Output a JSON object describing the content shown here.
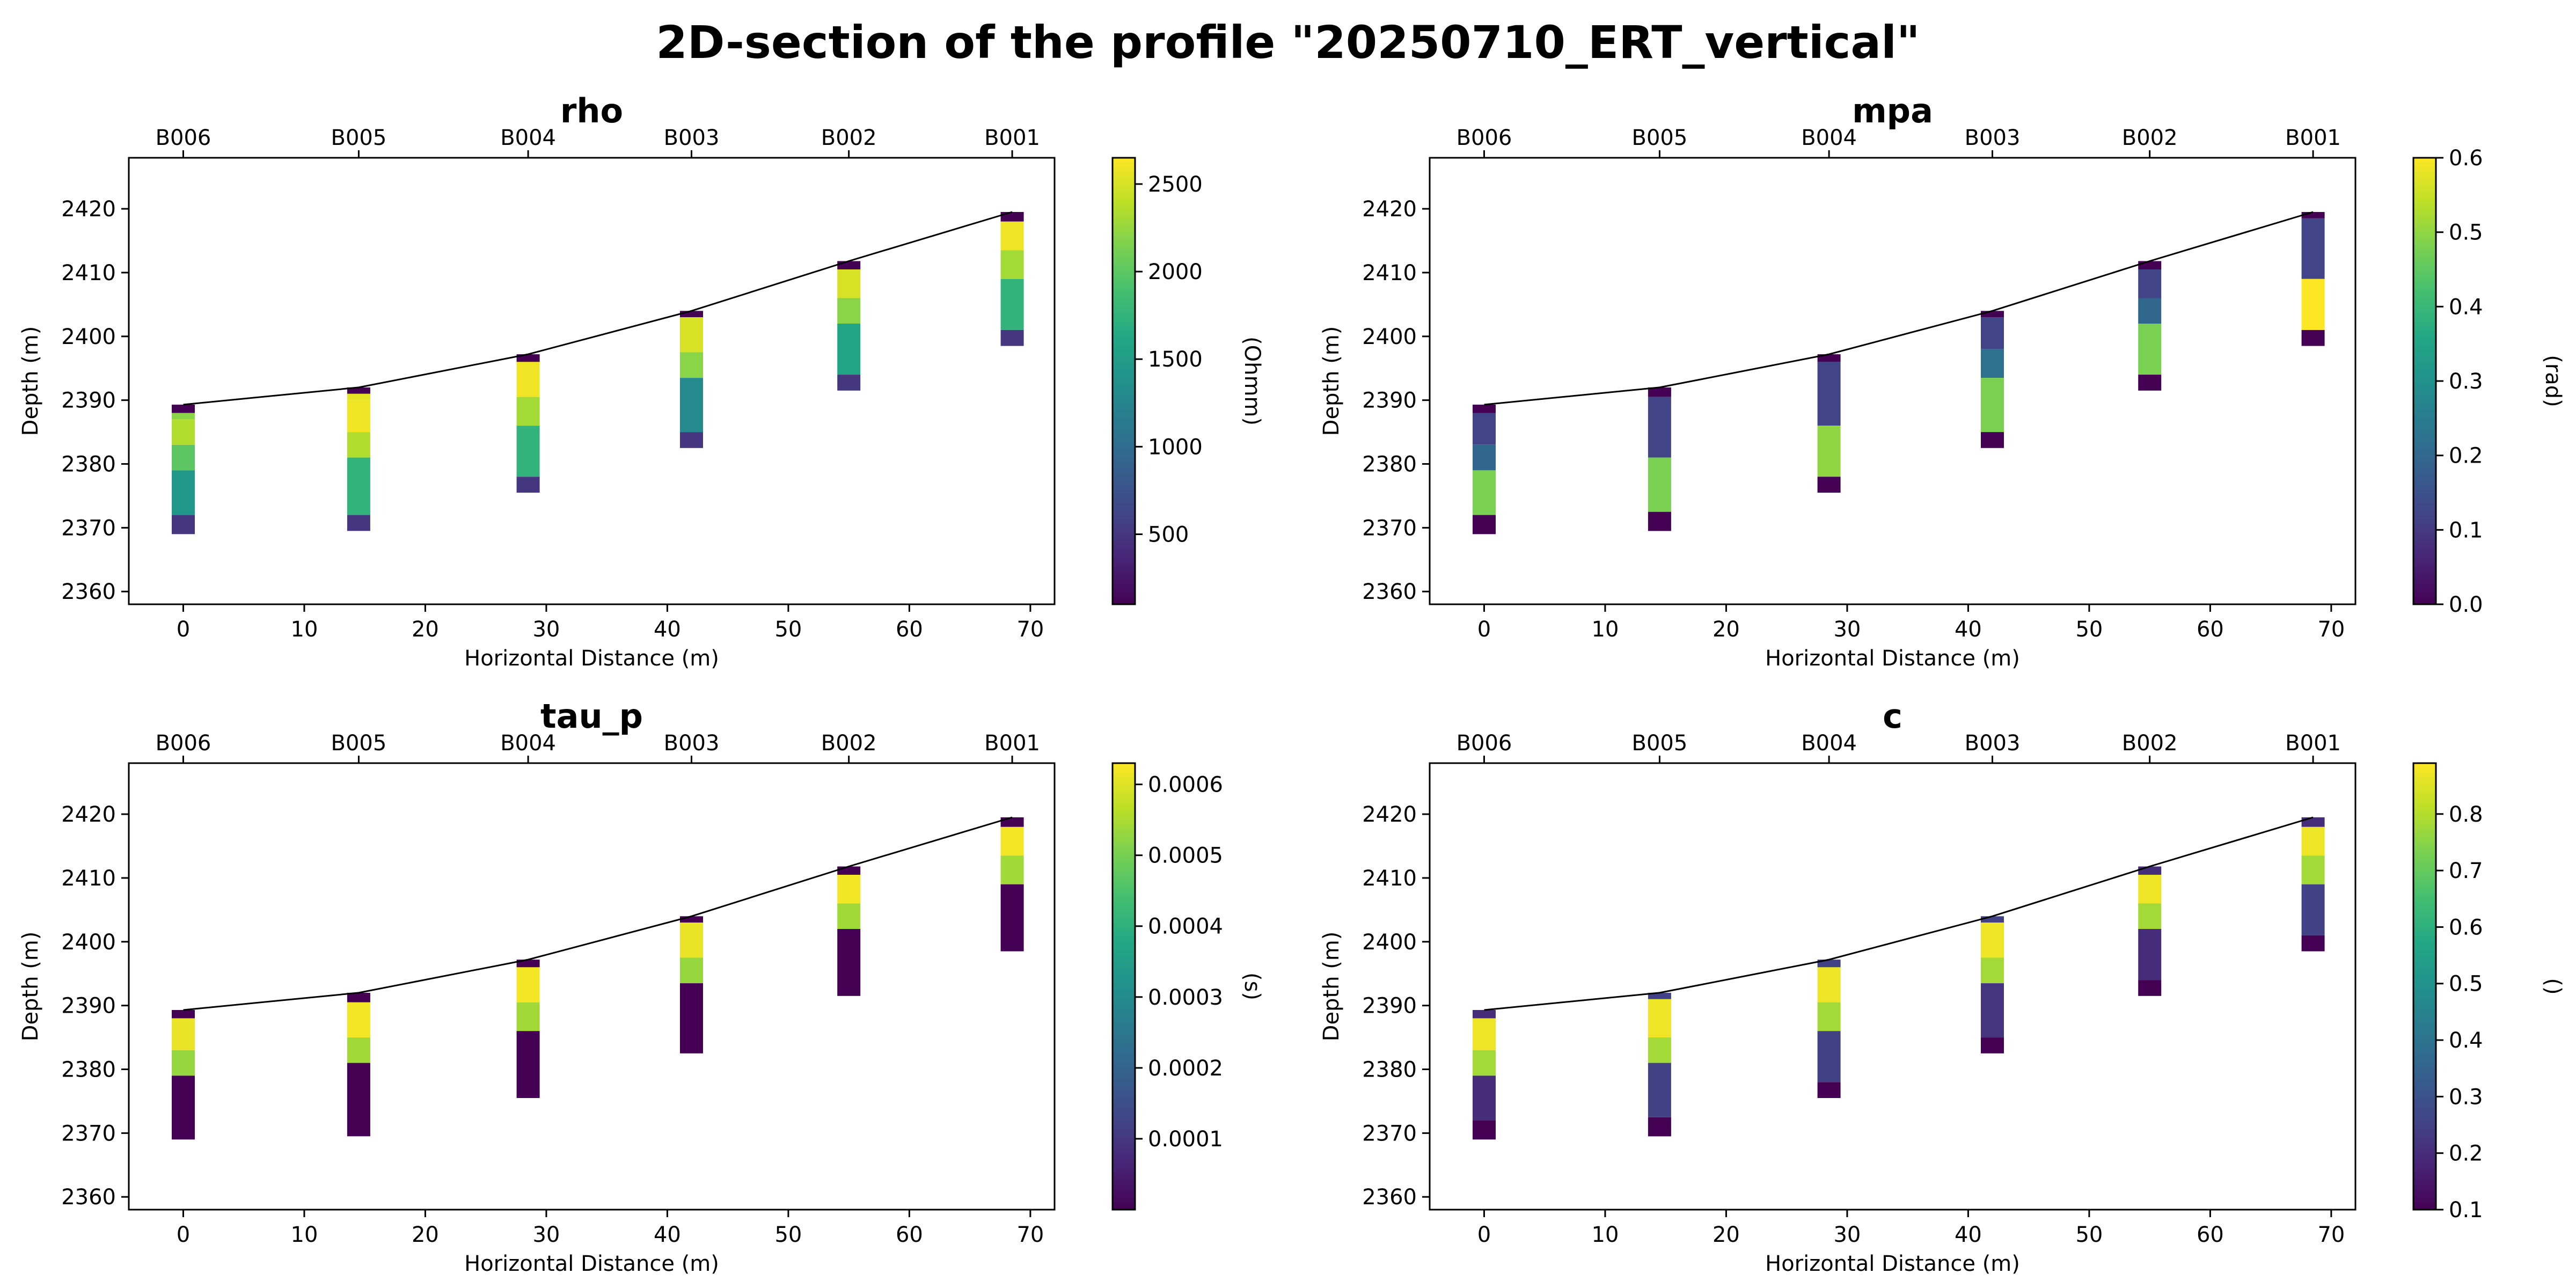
{
  "figure": {
    "title": "2D-section of the profile \"20250710_ERT_vertical\""
  },
  "chart_data": [
    {
      "type": "heatmap",
      "title": "rho",
      "xlabel": "Horizontal Distance (m)",
      "ylabel": "Depth (m)",
      "xlim": [
        -4.5,
        72
      ],
      "ylim": [
        2358,
        2428
      ],
      "xticks": [
        0,
        10,
        20,
        30,
        40,
        50,
        60,
        70
      ],
      "yticks": [
        2360,
        2370,
        2380,
        2390,
        2400,
        2410,
        2420
      ],
      "boreholes": [
        "B006",
        "B005",
        "B004",
        "B003",
        "B002",
        "B001"
      ],
      "borehole_x": [
        0,
        14.5,
        28.5,
        42,
        55,
        68.5
      ],
      "surface_elevation": [
        2389.3,
        2392.0,
        2397.2,
        2404.0,
        2411.8,
        2419.5
      ],
      "colorbar": {
        "label": "(Ohmm)",
        "ticks": [
          500,
          1000,
          1500,
          2000,
          2500
        ],
        "vmin": 100,
        "vmax": 2650
      },
      "columns": [
        [
          [
            2389.3,
            2388,
            100
          ],
          [
            2388,
            2387,
            2200
          ],
          [
            2387,
            2383,
            2350
          ],
          [
            2383,
            2379,
            2000
          ],
          [
            2379,
            2372,
            1450
          ],
          [
            2372,
            2369,
            500
          ]
        ],
        [
          [
            2392.0,
            2391,
            100
          ],
          [
            2391,
            2390,
            2550
          ],
          [
            2390,
            2385,
            2600
          ],
          [
            2385,
            2381,
            2350
          ],
          [
            2381,
            2372,
            1750
          ],
          [
            2372,
            2369.5,
            500
          ]
        ],
        [
          [
            2397.2,
            2396,
            100
          ],
          [
            2396,
            2390.5,
            2600
          ],
          [
            2390.5,
            2386,
            2300
          ],
          [
            2386,
            2378,
            1750
          ],
          [
            2378,
            2375.5,
            500
          ]
        ],
        [
          [
            2404.0,
            2403,
            100
          ],
          [
            2403,
            2397.5,
            2500
          ],
          [
            2397.5,
            2393.5,
            2200
          ],
          [
            2393.5,
            2385,
            1300
          ],
          [
            2385,
            2382.5,
            500
          ]
        ],
        [
          [
            2411.8,
            2410.5,
            100
          ],
          [
            2410.5,
            2406,
            2500
          ],
          [
            2406,
            2402,
            2200
          ],
          [
            2402,
            2394,
            1600
          ],
          [
            2394,
            2391.5,
            500
          ]
        ],
        [
          [
            2419.5,
            2418,
            100
          ],
          [
            2418,
            2413.5,
            2600
          ],
          [
            2413.5,
            2409,
            2300
          ],
          [
            2409,
            2401,
            1750
          ],
          [
            2401,
            2398.5,
            500
          ]
        ]
      ]
    },
    {
      "type": "heatmap",
      "title": "mpa",
      "xlabel": "Horizontal Distance (m)",
      "ylabel": "Depth (m)",
      "xlim": [
        -4.5,
        72
      ],
      "ylim": [
        2358,
        2428
      ],
      "xticks": [
        0,
        10,
        20,
        30,
        40,
        50,
        60,
        70
      ],
      "yticks": [
        2360,
        2370,
        2380,
        2390,
        2400,
        2410,
        2420
      ],
      "boreholes": [
        "B006",
        "B005",
        "B004",
        "B003",
        "B002",
        "B001"
      ],
      "borehole_x": [
        0,
        14.5,
        28.5,
        42,
        55,
        68.5
      ],
      "surface_elevation": [
        2389.3,
        2392.0,
        2397.2,
        2404.0,
        2411.8,
        2419.5
      ],
      "colorbar": {
        "label": "(rad)",
        "ticks": [
          0.0,
          0.1,
          0.2,
          0.3,
          0.4,
          0.5,
          0.6
        ],
        "vmin": 0,
        "vmax": 0.6
      },
      "columns": [
        [
          [
            2389.3,
            2388,
            0.0
          ],
          [
            2388,
            2383,
            0.12
          ],
          [
            2383,
            2379,
            0.2
          ],
          [
            2379,
            2372,
            0.48
          ],
          [
            2372,
            2369,
            0.0
          ]
        ],
        [
          [
            2392.0,
            2390.5,
            0.0
          ],
          [
            2390.5,
            2381,
            0.12
          ],
          [
            2381,
            2372.5,
            0.48
          ],
          [
            2372.5,
            2369.5,
            0.0
          ]
        ],
        [
          [
            2397.2,
            2396,
            0.0
          ],
          [
            2396,
            2386,
            0.12
          ],
          [
            2386,
            2378,
            0.5
          ],
          [
            2378,
            2375.5,
            0.0
          ]
        ],
        [
          [
            2404.0,
            2403,
            0.0
          ],
          [
            2403,
            2398,
            0.12
          ],
          [
            2398,
            2393.5,
            0.22
          ],
          [
            2393.5,
            2385,
            0.48
          ],
          [
            2385,
            2382.5,
            0.0
          ]
        ],
        [
          [
            2411.8,
            2410.5,
            0.0
          ],
          [
            2410.5,
            2406,
            0.12
          ],
          [
            2406,
            2402,
            0.2
          ],
          [
            2402,
            2394,
            0.48
          ],
          [
            2394,
            2391.5,
            0.0
          ]
        ],
        [
          [
            2419.5,
            2418.5,
            0.0
          ],
          [
            2418.5,
            2409,
            0.12
          ],
          [
            2409,
            2401,
            0.6
          ],
          [
            2401,
            2398.5,
            0.0
          ]
        ]
      ]
    },
    {
      "type": "heatmap",
      "title": "tau_p",
      "xlabel": "Horizontal Distance (m)",
      "ylabel": "Depth (m)",
      "xlim": [
        -4.5,
        72
      ],
      "ylim": [
        2358,
        2428
      ],
      "xticks": [
        0,
        10,
        20,
        30,
        40,
        50,
        60,
        70
      ],
      "yticks": [
        2360,
        2370,
        2380,
        2390,
        2400,
        2410,
        2420
      ],
      "boreholes": [
        "B006",
        "B005",
        "B004",
        "B003",
        "B002",
        "B001"
      ],
      "borehole_x": [
        0,
        14.5,
        28.5,
        42,
        55,
        68.5
      ],
      "surface_elevation": [
        2389.3,
        2392.0,
        2397.2,
        2404.0,
        2411.8,
        2419.5
      ],
      "colorbar": {
        "label": "(s)",
        "ticks": [
          0.0001,
          0.0002,
          0.0003,
          0.0004,
          0.0005,
          0.0006
        ],
        "vmin": 0,
        "vmax": 0.00063
      },
      "columns": [
        [
          [
            2389.3,
            2388,
            0.0
          ],
          [
            2388,
            2383,
            0.00061
          ],
          [
            2383,
            2379,
            0.00053
          ],
          [
            2379,
            2369,
            0.0
          ]
        ],
        [
          [
            2392.0,
            2390.5,
            0.0
          ],
          [
            2390.5,
            2385,
            0.00062
          ],
          [
            2385,
            2381,
            0.00054
          ],
          [
            2381,
            2369.5,
            0.0
          ]
        ],
        [
          [
            2397.2,
            2396,
            0.0
          ],
          [
            2396,
            2390.5,
            0.00062
          ],
          [
            2390.5,
            2386,
            0.00054
          ],
          [
            2386,
            2375.5,
            0.0
          ]
        ],
        [
          [
            2404.0,
            2403,
            0.0
          ],
          [
            2403,
            2397.5,
            0.00061
          ],
          [
            2397.5,
            2393.5,
            0.00053
          ],
          [
            2393.5,
            2382.5,
            0.0
          ]
        ],
        [
          [
            2411.8,
            2410.5,
            0.0
          ],
          [
            2410.5,
            2406,
            0.00062
          ],
          [
            2406,
            2402,
            0.00054
          ],
          [
            2402,
            2391.5,
            0.0
          ]
        ],
        [
          [
            2419.5,
            2418,
            0.0
          ],
          [
            2418,
            2413.5,
            0.00062
          ],
          [
            2413.5,
            2409,
            0.00054
          ],
          [
            2409,
            2398.5,
            0.0
          ]
        ]
      ]
    },
    {
      "type": "heatmap",
      "title": "c",
      "xlabel": "Horizontal Distance (m)",
      "ylabel": "Depth (m)",
      "xlim": [
        -4.5,
        72
      ],
      "ylim": [
        2358,
        2428
      ],
      "xticks": [
        0,
        10,
        20,
        30,
        40,
        50,
        60,
        70
      ],
      "yticks": [
        2360,
        2370,
        2380,
        2390,
        2400,
        2410,
        2420
      ],
      "boreholes": [
        "B006",
        "B005",
        "B004",
        "B003",
        "B002",
        "B001"
      ],
      "borehole_x": [
        0,
        14.5,
        28.5,
        42,
        55,
        68.5
      ],
      "surface_elevation": [
        2389.3,
        2392.0,
        2397.2,
        2404.0,
        2411.8,
        2419.5
      ],
      "colorbar": {
        "label": "()",
        "ticks": [
          0.1,
          0.2,
          0.3,
          0.4,
          0.5,
          0.6,
          0.7,
          0.8
        ],
        "vmin": 0.1,
        "vmax": 0.89
      },
      "columns": [
        [
          [
            2389.3,
            2388,
            0.2
          ],
          [
            2388,
            2383,
            0.87
          ],
          [
            2383,
            2379,
            0.78
          ],
          [
            2379,
            2372,
            0.2
          ],
          [
            2372,
            2369,
            0.1
          ]
        ],
        [
          [
            2392.0,
            2391,
            0.25
          ],
          [
            2391,
            2385,
            0.87
          ],
          [
            2385,
            2381,
            0.78
          ],
          [
            2381,
            2372.5,
            0.25
          ],
          [
            2372.5,
            2369.5,
            0.1
          ]
        ],
        [
          [
            2397.2,
            2396,
            0.25
          ],
          [
            2396,
            2390.5,
            0.87
          ],
          [
            2390.5,
            2386,
            0.78
          ],
          [
            2386,
            2378,
            0.25
          ],
          [
            2378,
            2375.5,
            0.1
          ]
        ],
        [
          [
            2404.0,
            2403,
            0.25
          ],
          [
            2403,
            2397.5,
            0.87
          ],
          [
            2397.5,
            2393.5,
            0.78
          ],
          [
            2393.5,
            2385,
            0.22
          ],
          [
            2385,
            2382.5,
            0.1
          ]
        ],
        [
          [
            2411.8,
            2410.5,
            0.2
          ],
          [
            2410.5,
            2406,
            0.87
          ],
          [
            2406,
            2402,
            0.78
          ],
          [
            2402,
            2394,
            0.2
          ],
          [
            2394,
            2391.5,
            0.1
          ]
        ],
        [
          [
            2419.5,
            2418,
            0.2
          ],
          [
            2418,
            2413.5,
            0.87
          ],
          [
            2413.5,
            2409,
            0.78
          ],
          [
            2409,
            2401,
            0.25
          ],
          [
            2401,
            2398.5,
            0.1
          ]
        ]
      ]
    }
  ]
}
